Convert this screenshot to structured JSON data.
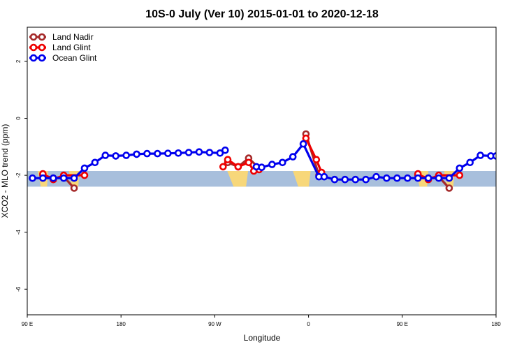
{
  "chart_data": {
    "type": "line",
    "title": "10S-0 July (Ver 10)   2015-01-01 to 2020-12-18",
    "xlabel": "Longitude",
    "ylabel": "XCO2 - MLO trend (ppm)",
    "xlim": [
      90,
      450
    ],
    "ylim": [
      -6.9,
      3.2
    ],
    "x_ticks": [
      {
        "value": 90,
        "label": "90 E"
      },
      {
        "value": 180,
        "label": "180"
      },
      {
        "value": 270,
        "label": "90 W"
      },
      {
        "value": 360,
        "label": "0"
      },
      {
        "value": 450,
        "label": "90 E"
      },
      {
        "value": 540,
        "label": "180"
      }
    ],
    "y_ticks": [
      {
        "value": 2,
        "label": "2"
      },
      {
        "value": 0,
        "label": "0"
      },
      {
        "value": -2,
        "label": "-2"
      },
      {
        "value": -4,
        "label": "-4"
      },
      {
        "value": -6,
        "label": "-6"
      }
    ],
    "legend_position": "top-left",
    "map_band": {
      "y_min": -2.4,
      "y_max": -1.85,
      "ocean_color": "#a8bfdc",
      "land_color": "#f7d77a"
    },
    "series": [
      {
        "name": "Land Nadir",
        "color": "#a52a2a",
        "segments": [
          {
            "x": [
              105,
              115,
              125,
              135
            ],
            "y": [
              -2.0,
              -2.1,
              -2.05,
              -2.45
            ]
          },
          {
            "x": [
              282.5,
              292.5,
              302.5,
              312.5
            ],
            "y": [
              -1.55,
              -1.7,
              -1.4,
              -1.75
            ]
          },
          {
            "x": [
              357.5,
              370
            ],
            "y": [
              -0.55,
              -2.0
            ]
          },
          {
            "x": [
              465,
              475,
              485,
              495
            ],
            "y": [
              -2.0,
              -2.1,
              -2.05,
              -2.45
            ]
          }
        ]
      },
      {
        "name": "Land Glint",
        "color": "#ee0000",
        "segments": [
          {
            "x": [
              105,
              115,
              125,
              145
            ],
            "y": [
              -1.95,
              -2.15,
              -2.0,
              -2.0
            ]
          },
          {
            "x": [
              278,
              282.5,
              292.5,
              302.5,
              307.5,
              312.5
            ],
            "y": [
              -1.7,
              -1.45,
              -1.7,
              -1.55,
              -1.85,
              -1.8
            ]
          },
          {
            "x": [
              357.5,
              367.5,
              372.5
            ],
            "y": [
              -0.7,
              -1.45,
              -1.9
            ]
          },
          {
            "x": [
              465,
              475,
              485,
              505
            ],
            "y": [
              -1.95,
              -2.15,
              -2.0,
              -2.0
            ]
          }
        ]
      },
      {
        "name": "Ocean Glint",
        "color": "#0000ee",
        "segments": [
          {
            "x": [
              95,
              105,
              115,
              125,
              135,
              145,
              155,
              165,
              175,
              185,
              195,
              205,
              215,
              225,
              235,
              245,
              255,
              265,
              275,
              280
            ],
            "y": [
              -2.1,
              -2.1,
              -2.1,
              -2.1,
              -2.1,
              -1.75,
              -1.55,
              -1.3,
              -1.32,
              -1.3,
              -1.26,
              -1.24,
              -1.24,
              -1.23,
              -1.22,
              -1.2,
              -1.18,
              -1.2,
              -1.22,
              -1.12
            ]
          },
          {
            "x": [
              310,
              315,
              325,
              335,
              345,
              355,
              370,
              375,
              385,
              395,
              405,
              415,
              425,
              435,
              445,
              455,
              465,
              475,
              485,
              495,
              505,
              515,
              525,
              535,
              540
            ],
            "y": [
              -1.7,
              -1.72,
              -1.62,
              -1.55,
              -1.35,
              -0.9,
              -2.05,
              -2.05,
              -2.15,
              -2.15,
              -2.15,
              -2.15,
              -2.05,
              -2.1,
              -2.1,
              -2.1,
              -2.1,
              -2.1,
              -2.1,
              -2.1,
              -1.75,
              -1.55,
              -1.3,
              -1.32,
              -1.32
            ]
          }
        ]
      }
    ]
  }
}
